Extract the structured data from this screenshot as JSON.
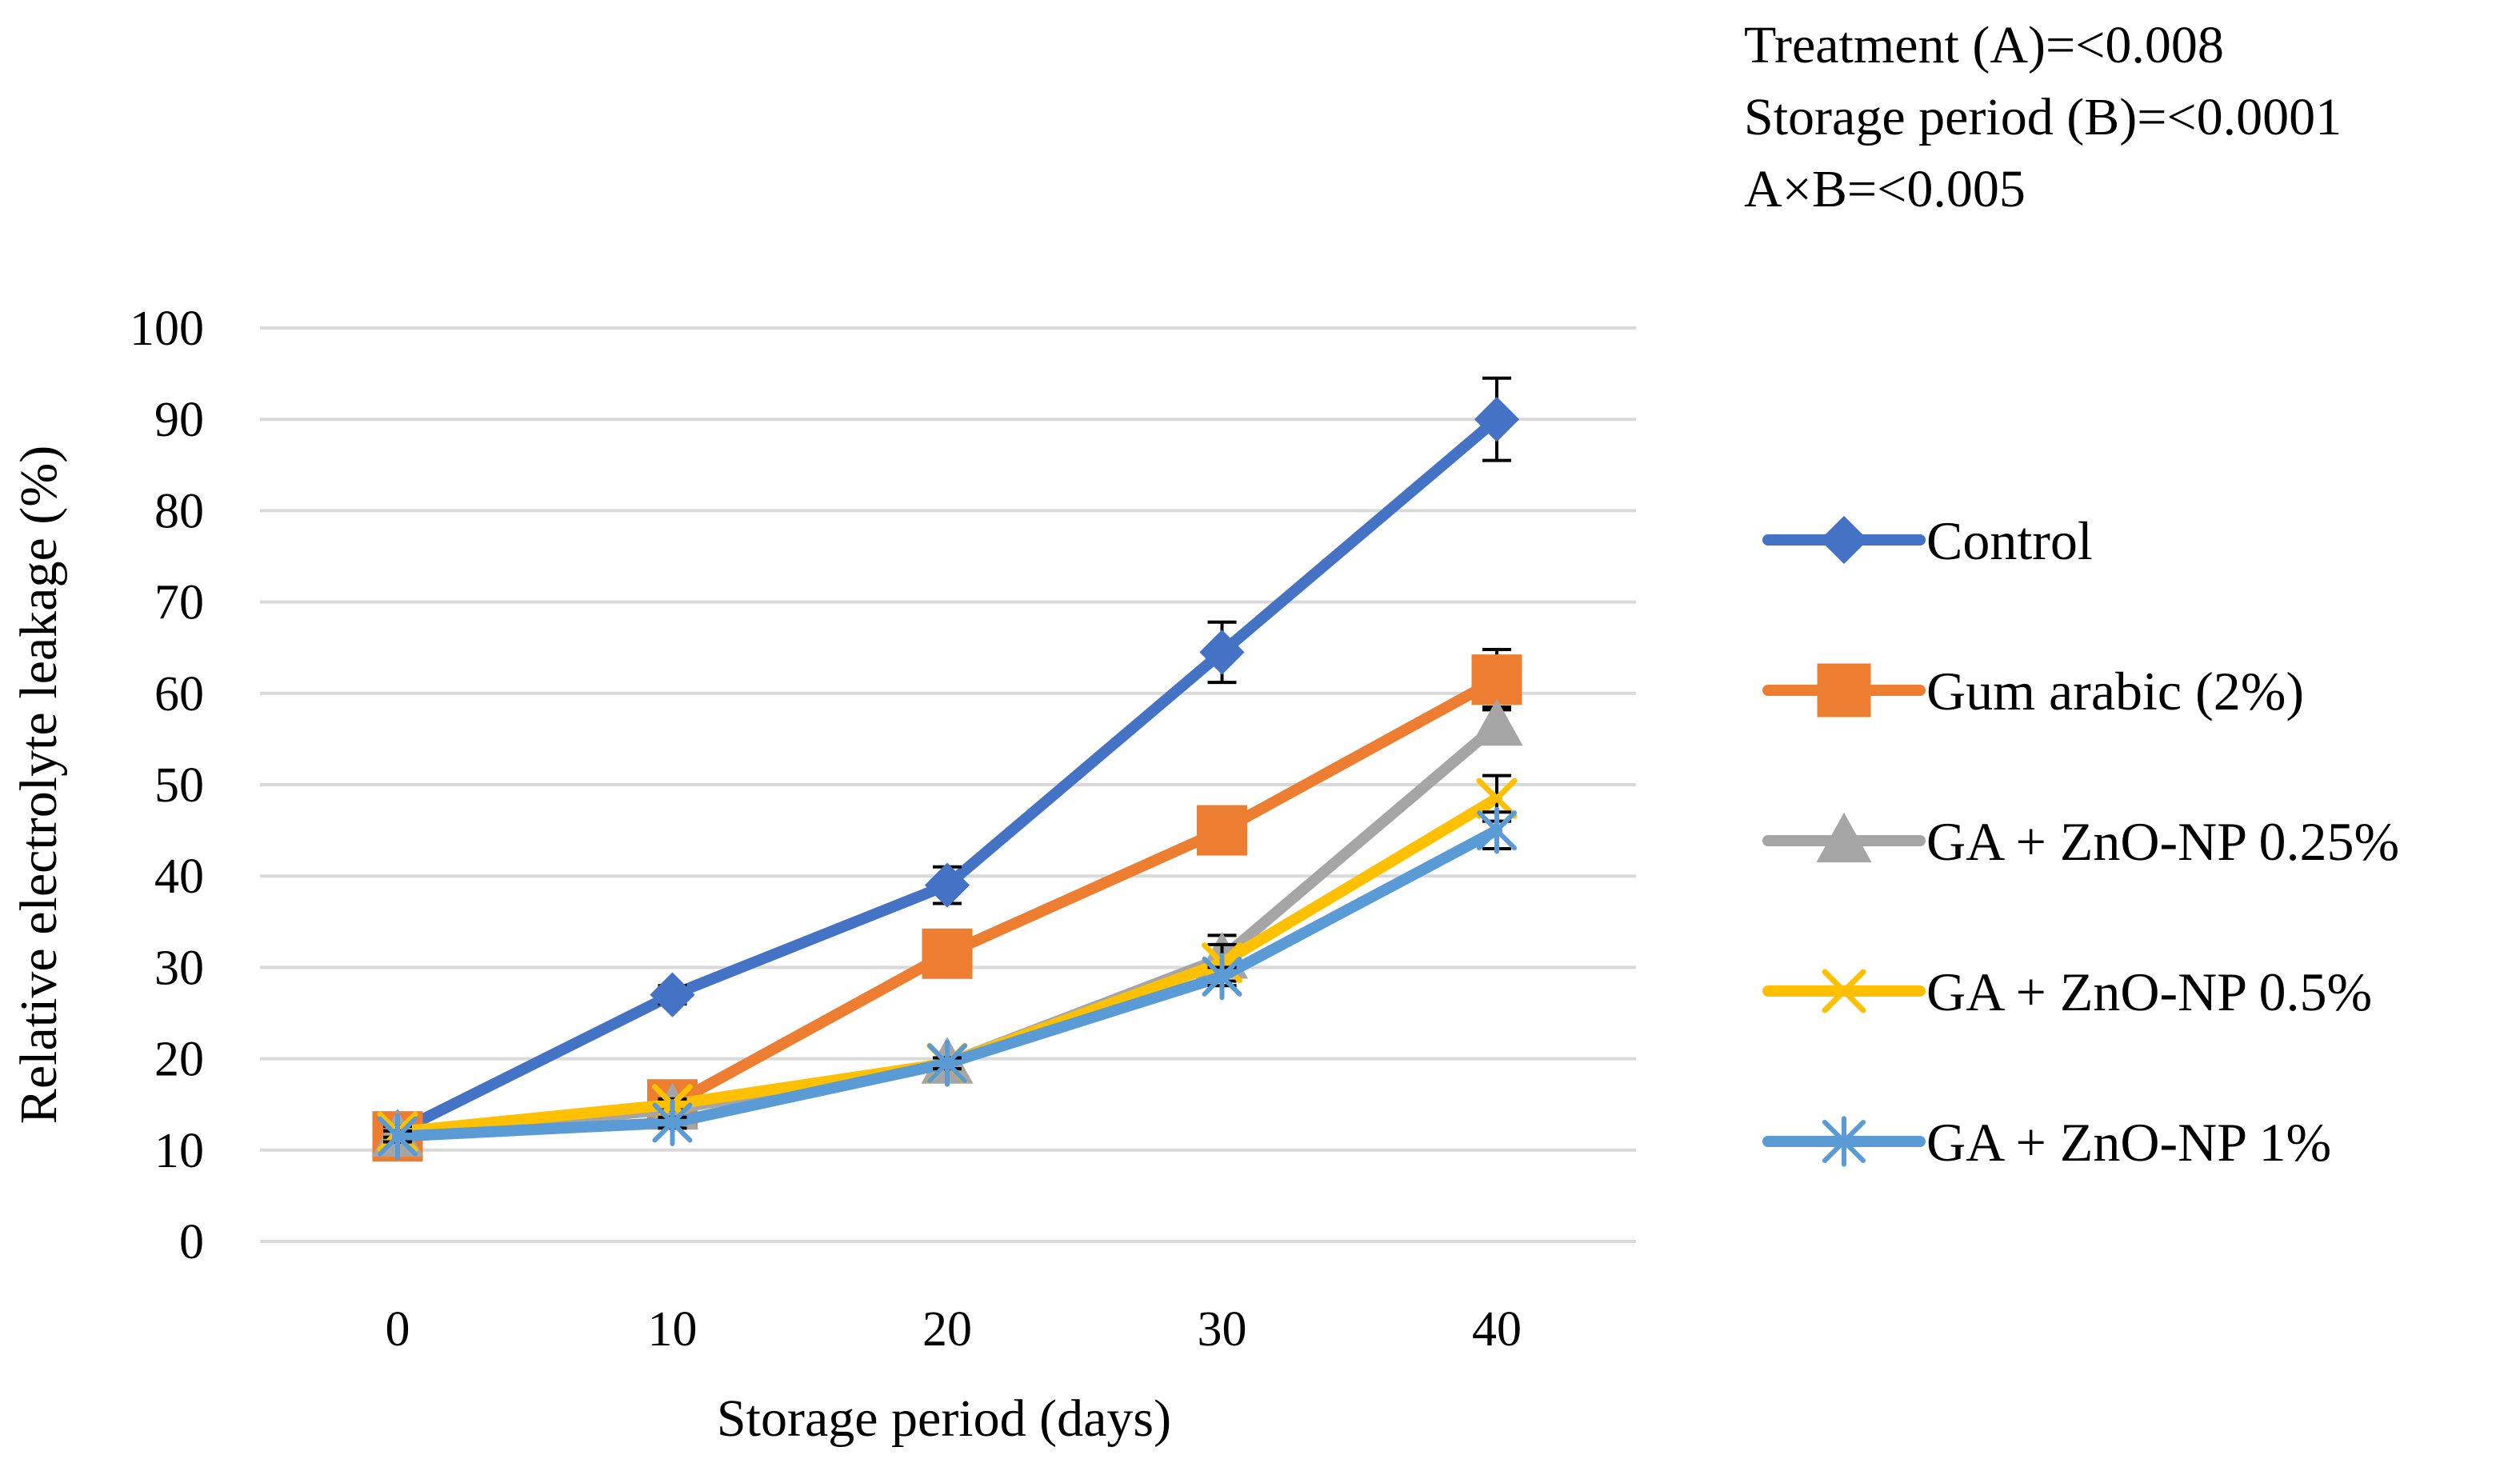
{
  "chart_data": {
    "type": "line",
    "title": "",
    "xlabel": "Storage period (days)",
    "ylabel": "Relative electrolyte leakage (%)",
    "x": [
      0,
      10,
      20,
      30,
      40
    ],
    "x_tick_labels": [
      "0",
      "10",
      "20",
      "30",
      "40"
    ],
    "ylim": [
      0,
      100
    ],
    "y_ticks": [
      0,
      10,
      20,
      30,
      40,
      50,
      60,
      70,
      80,
      90,
      100
    ],
    "y_tick_labels": [
      "0",
      "10",
      "20",
      "30",
      "40",
      "50",
      "60",
      "70",
      "80",
      "90",
      "100"
    ],
    "grid": "horizontal",
    "legend_position": "right",
    "series": [
      {
        "name": "Control",
        "color": "#4472C4",
        "marker": "diamond",
        "values": [
          12,
          27,
          39,
          64.5,
          90
        ],
        "error": [
          1,
          1,
          2,
          3.3,
          4.5
        ]
      },
      {
        "name": "Gum arabic (2%)",
        "color": "#ED7D31",
        "marker": "square",
        "values": [
          11.5,
          15,
          31.5,
          45,
          61.5
        ],
        "error": [
          0.8,
          0.8,
          1,
          1,
          3.3
        ]
      },
      {
        "name": "GA + ZnO-NP 0.25%",
        "color": "#A5A5A5",
        "marker": "triangle",
        "values": [
          11.5,
          14.5,
          19.5,
          31,
          56.5
        ],
        "error": [
          0.6,
          0.6,
          0.6,
          2.5,
          2
        ]
      },
      {
        "name": "GA + ZnO-NP 0.5%",
        "color": "#FFC000",
        "marker": "x",
        "values": [
          12,
          15,
          19.5,
          30.5,
          48.5
        ],
        "error": [
          0.6,
          0.6,
          0.6,
          2,
          2.5
        ]
      },
      {
        "name": "GA + ZnO-NP 1%",
        "color": "#5B9BD5",
        "marker": "star",
        "values": [
          11.5,
          13,
          19.5,
          29,
          45
        ],
        "error": [
          0.6,
          0.6,
          0.6,
          1,
          2
        ]
      }
    ]
  },
  "stats": {
    "line1": "Treatment (A)=<0.008",
    "line2": "Storage period (B)=<0.0001",
    "line3": "A×B=<0.005"
  }
}
